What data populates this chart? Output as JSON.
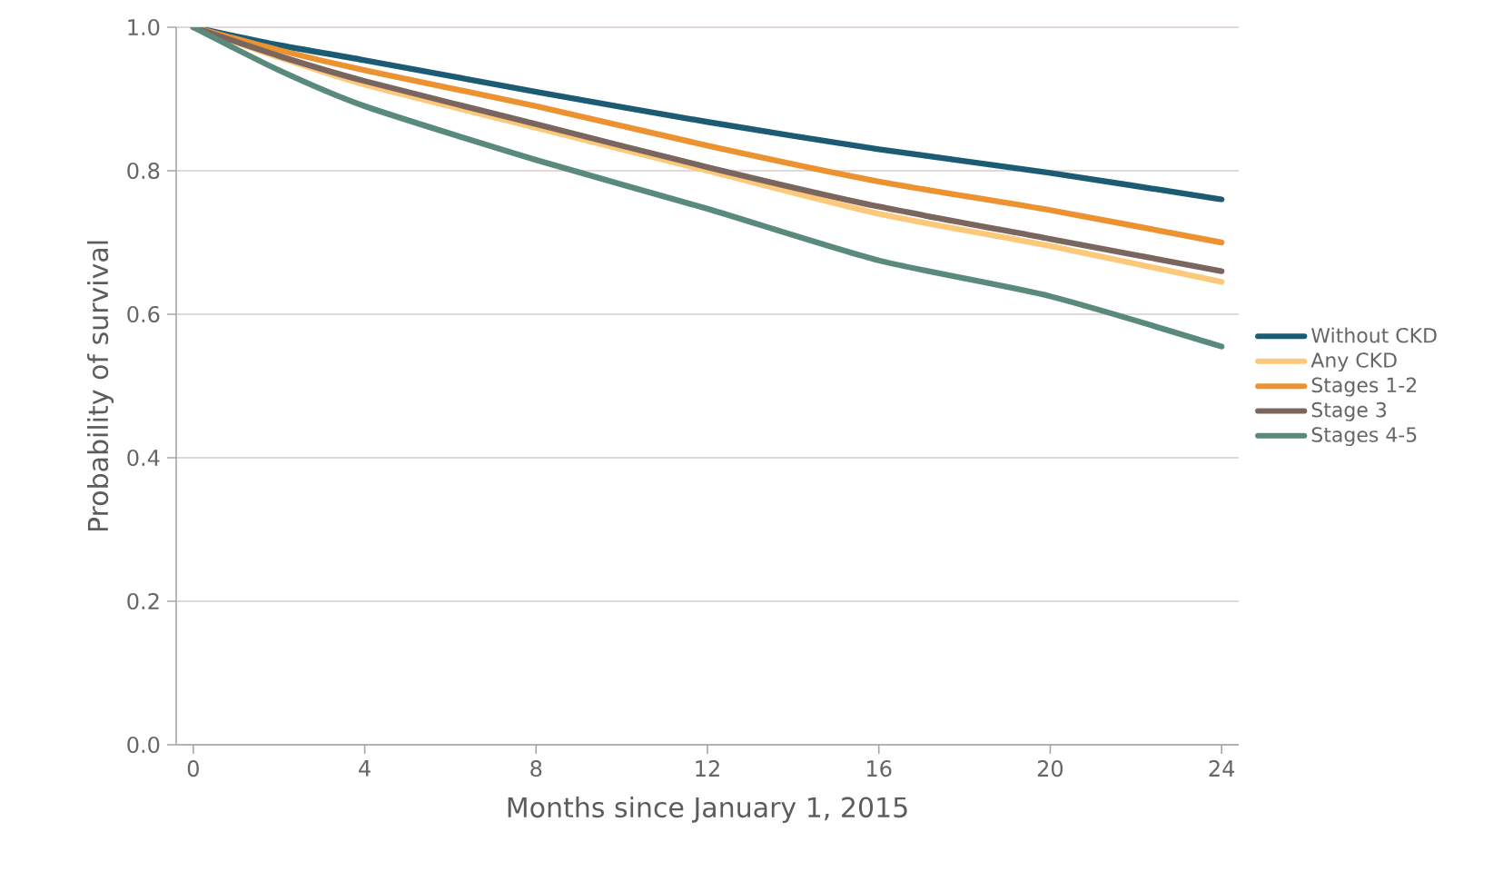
{
  "chart_data": {
    "type": "line",
    "xlabel": "Months since January 1, 2015",
    "ylabel": "Probability of survival",
    "xlim": [
      -0.4,
      24.4
    ],
    "ylim": [
      0,
      1.0
    ],
    "xticks": [
      0,
      4,
      8,
      12,
      16,
      20,
      24
    ],
    "yticks": [
      {
        "value": 0,
        "label": "0.0"
      },
      {
        "value": 0.2,
        "label": "0.2"
      },
      {
        "value": 0.4,
        "label": "0.4"
      },
      {
        "value": 0.6,
        "label": "0.6"
      },
      {
        "value": 0.8,
        "label": "0.8"
      },
      {
        "value": 1.0,
        "label": "1.0"
      }
    ],
    "x": [
      0,
      2,
      4,
      8,
      12,
      16,
      20,
      24
    ],
    "series": [
      {
        "name": "Without CKD",
        "color": "#1b5b74",
        "values": [
          1.0,
          0.975,
          0.954,
          0.91,
          0.868,
          0.83,
          0.797,
          0.76
        ]
      },
      {
        "name": "Any CKD",
        "color": "#fcc97a",
        "values": [
          1.0,
          0.958,
          0.92,
          0.86,
          0.8,
          0.74,
          0.695,
          0.645
        ]
      },
      {
        "name": "Stages 1-2",
        "color": "#ec9230",
        "values": [
          1.0,
          0.968,
          0.94,
          0.89,
          0.835,
          0.785,
          0.745,
          0.7
        ]
      },
      {
        "name": "Stage 3",
        "color": "#7a665e",
        "values": [
          1.0,
          0.96,
          0.925,
          0.865,
          0.805,
          0.75,
          0.705,
          0.66
        ]
      },
      {
        "name": "Stages 4-5",
        "color": "#5a8a7e",
        "values": [
          1.0,
          0.94,
          0.89,
          0.815,
          0.747,
          0.675,
          0.625,
          0.555
        ]
      }
    ],
    "grid": "y",
    "legend": "right",
    "marker": "none",
    "line_style": "solid"
  }
}
